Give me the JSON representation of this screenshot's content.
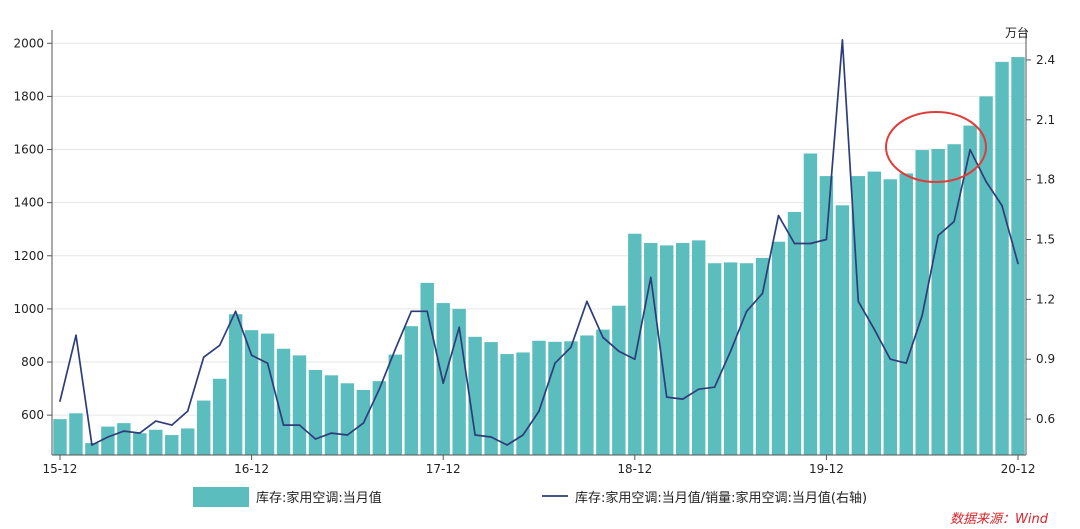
{
  "chart_data": {
    "type": "bar+line",
    "title": "",
    "left_axis": {
      "ticks": [
        600,
        800,
        1000,
        1200,
        1400,
        1600,
        1800,
        2000
      ],
      "range": [
        450,
        2050
      ]
    },
    "right_axis": {
      "unit": "万台",
      "ticks": [
        "0.6",
        "0.9",
        "1.2",
        "1.5",
        "1.8",
        "2.1",
        "2.4"
      ],
      "tick_values": [
        0.6,
        0.9,
        1.2,
        1.5,
        1.8,
        2.1,
        2.4
      ],
      "range": [
        0.42,
        2.55
      ]
    },
    "x_ticks": [
      {
        "label": "15-12",
        "index": 0
      },
      {
        "label": "16-12",
        "index": 12
      },
      {
        "label": "17-12",
        "index": 24
      },
      {
        "label": "18-12",
        "index": 36
      },
      {
        "label": "19-12",
        "index": 48
      },
      {
        "label": "20-12",
        "index": 60
      }
    ],
    "bars": {
      "name": "库存:家用空调:当月值",
      "color": "#5bbdbd",
      "values": [
        585,
        607,
        495,
        557,
        570,
        532,
        545,
        525,
        550,
        655,
        737,
        980,
        920,
        907,
        850,
        825,
        770,
        750,
        720,
        695,
        728,
        828,
        935,
        1098,
        1022,
        1000,
        895,
        875,
        830,
        836,
        880,
        876,
        878,
        900,
        922,
        1012,
        1283,
        1248,
        1239,
        1248,
        1258,
        1172,
        1175,
        1172,
        1192,
        1253,
        1365,
        1585,
        1500,
        1390,
        1500,
        1517,
        1488,
        1510,
        1598,
        1602,
        1620,
        1690,
        1800,
        1930,
        1948
      ]
    },
    "line": {
      "name": "库存:家用空调:当月值/销量:家用空调:当月值(右轴)",
      "color": "#2e3d7a",
      "values": [
        0.69,
        1.02,
        0.47,
        0.51,
        0.54,
        0.53,
        0.59,
        0.57,
        0.64,
        0.91,
        0.97,
        1.14,
        0.92,
        0.88,
        0.57,
        0.57,
        0.5,
        0.53,
        0.52,
        0.58,
        0.75,
        0.95,
        1.14,
        1.14,
        0.78,
        1.06,
        0.52,
        0.51,
        0.47,
        0.52,
        0.64,
        0.88,
        0.96,
        1.19,
        1.01,
        0.94,
        0.9,
        1.31,
        0.71,
        0.7,
        0.75,
        0.76,
        0.94,
        1.14,
        1.23,
        1.62,
        1.48,
        1.48,
        1.5,
        2.5,
        1.19,
        1.05,
        0.9,
        0.88,
        1.12,
        1.52,
        1.59,
        1.95,
        1.79,
        1.67,
        1.38
      ]
    },
    "annotation": {
      "type": "ellipse",
      "color": "#e03c3c",
      "note": "highlighted bars near 1600"
    }
  },
  "source": "数据来源：Wind"
}
